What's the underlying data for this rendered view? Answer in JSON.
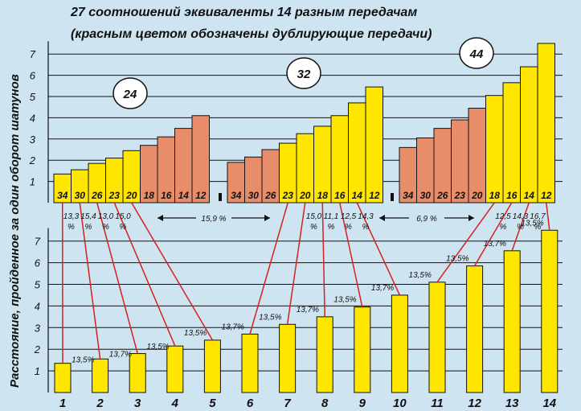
{
  "title_line1": "27 соотношений эквиваленты 14 разным передачам",
  "title_line2": "(красным цветом  обозначены дублирующие передачи)",
  "ylabel": "Расстояние, пройденное за один оборот шатунов",
  "colors": {
    "background": "#cfe4f1",
    "primary": "#ffe600",
    "duplicate": "#e88d6a",
    "link": "#d52020"
  },
  "chart_data": [
    {
      "type": "bar",
      "title": "27 соотношений эквиваленты 14 разным передачам",
      "subtitle": "(красным цветом  обозначены дублирующие передачи)",
      "ylim": [
        0,
        7.6
      ],
      "yticks": [
        1,
        2,
        3,
        4,
        5,
        6,
        7
      ],
      "grid": true,
      "groups": [
        {
          "chainring": "24",
          "cogs": [
            "34",
            "30",
            "26",
            "23",
            "20",
            "18",
            "16",
            "14",
            "12"
          ],
          "values": [
            1.35,
            1.55,
            1.85,
            2.1,
            2.45,
            2.7,
            3.1,
            3.5,
            4.1
          ],
          "duplicate": [
            false,
            false,
            false,
            false,
            false,
            true,
            true,
            true,
            true
          ]
        },
        {
          "chainring": "32",
          "cogs": [
            "34",
            "30",
            "26",
            "23",
            "20",
            "18",
            "16",
            "14",
            "12"
          ],
          "values": [
            1.9,
            2.15,
            2.5,
            2.8,
            3.25,
            3.6,
            4.1,
            4.7,
            5.45
          ],
          "duplicate": [
            true,
            true,
            true,
            false,
            false,
            false,
            false,
            false,
            false
          ]
        },
        {
          "chainring": "44",
          "cogs": [
            "34",
            "30",
            "26",
            "23",
            "20",
            "18",
            "16",
            "14",
            "12"
          ],
          "values": [
            2.6,
            3.05,
            3.5,
            3.9,
            4.45,
            5.05,
            5.65,
            6.4,
            7.5
          ],
          "duplicate": [
            true,
            true,
            true,
            true,
            true,
            false,
            false,
            false,
            false
          ]
        }
      ],
      "steps_left": [
        "13,3 %",
        "15,4 %",
        "13,0 %",
        "15,0 %"
      ],
      "steps_mid": [
        "15,0 %",
        "11,1 %",
        "12,5 %",
        "14,3 %"
      ],
      "steps_right": [
        "12,5 %",
        "14,3 %",
        "16,7 %"
      ],
      "gap_left": "15,9 %",
      "gap_right": "6,9 %"
    },
    {
      "type": "bar",
      "xlabel": "",
      "ylabel": "Расстояние, пройденное за один оборот шатунов",
      "ylim": [
        0,
        7.6
      ],
      "yticks": [
        1,
        2,
        3,
        4,
        5,
        6,
        7
      ],
      "grid": true,
      "categories": [
        "1",
        "2",
        "3",
        "4",
        "5",
        "6",
        "7",
        "8",
        "9",
        "10",
        "11",
        "12",
        "13",
        "14"
      ],
      "values": [
        1.35,
        1.55,
        1.8,
        2.15,
        2.42,
        2.7,
        3.15,
        3.5,
        3.95,
        4.5,
        5.1,
        5.85,
        6.55,
        7.5
      ],
      "step_labels": [
        "13,5%",
        "13,7%",
        "13,5%",
        "13,5%",
        "13,7%",
        "13,5%",
        "13,7%",
        "13,5%",
        "13,7%",
        "13,5%",
        "13,5%",
        "13,7%",
        "13,5%"
      ]
    }
  ]
}
